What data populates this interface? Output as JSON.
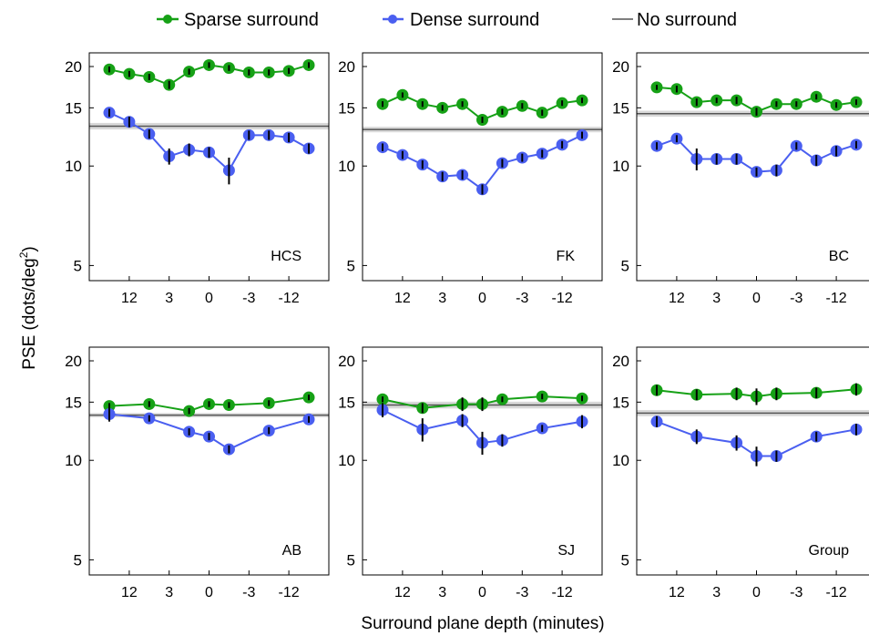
{
  "chart_data": {
    "type": "line",
    "legend": {
      "placement": "top",
      "items": [
        {
          "label": "Sparse surround",
          "color": "#16a116",
          "marker": "circle"
        },
        {
          "label": "Dense surround",
          "color": "#4a5ff0",
          "marker": "circle"
        },
        {
          "label": "No surround",
          "color": "#555555",
          "marker": "line"
        }
      ]
    },
    "ylabel_main": "PSE (dots/deg",
    "ylabel_sup": "2",
    "ylabel_close": ")",
    "xlabel": "Surround plane depth (minutes)",
    "x_tick_labels": [
      "12",
      "3",
      "0",
      "-3",
      "-12"
    ],
    "y_ticks": [
      5,
      10,
      15,
      20
    ],
    "y_scale": "log",
    "ylim": [
      4.5,
      22
    ],
    "x_positions": [
      1,
      2,
      3,
      4,
      5,
      6,
      7,
      8,
      9,
      10,
      11
    ],
    "x_tick_positions": [
      2,
      4,
      6,
      8,
      10
    ],
    "colors": {
      "sparse": "#16a116",
      "dense": "#4a5ff0",
      "baseline": "#555555",
      "band": "#d9d9d9"
    },
    "panels": [
      {
        "label": "HCS",
        "baseline": 13.2,
        "band": [
          12.9,
          13.5
        ],
        "sparse": [
          {
            "x": 1,
            "y": 19.6,
            "err": 0.4
          },
          {
            "x": 2,
            "y": 19.0,
            "err": 0.4
          },
          {
            "x": 3,
            "y": 18.6,
            "err": 0.4
          },
          {
            "x": 4,
            "y": 17.6,
            "err": 0.5
          },
          {
            "x": 5,
            "y": 19.3,
            "err": 0.4
          },
          {
            "x": 6,
            "y": 20.2,
            "err": 0.4
          },
          {
            "x": 7,
            "y": 19.8,
            "err": 0.4
          },
          {
            "x": 8,
            "y": 19.2,
            "err": 0.4
          },
          {
            "x": 9,
            "y": 19.2,
            "err": 0.4
          },
          {
            "x": 10,
            "y": 19.4,
            "err": 0.4
          },
          {
            "x": 11,
            "y": 20.2,
            "err": 0.4
          }
        ],
        "dense": [
          {
            "x": 1,
            "y": 14.5,
            "err": 0.4
          },
          {
            "x": 2,
            "y": 13.6,
            "err": 0.5
          },
          {
            "x": 3,
            "y": 12.5,
            "err": 0.4
          },
          {
            "x": 4,
            "y": 10.7,
            "err": 0.6
          },
          {
            "x": 5,
            "y": 11.2,
            "err": 0.5
          },
          {
            "x": 6,
            "y": 11.0,
            "err": 0.4
          },
          {
            "x": 7,
            "y": 9.7,
            "err": 0.9
          },
          {
            "x": 8,
            "y": 12.4,
            "err": 0.4
          },
          {
            "x": 9,
            "y": 12.4,
            "err": 0.4
          },
          {
            "x": 10,
            "y": 12.2,
            "err": 0.4
          },
          {
            "x": 11,
            "y": 11.3,
            "err": 0.4
          }
        ]
      },
      {
        "label": "FK",
        "baseline": 12.9,
        "band": [
          12.65,
          13.15
        ],
        "sparse": [
          {
            "x": 1,
            "y": 15.4,
            "err": 0.3
          },
          {
            "x": 2,
            "y": 16.4,
            "err": 0.3
          },
          {
            "x": 3,
            "y": 15.4,
            "err": 0.3
          },
          {
            "x": 4,
            "y": 15.0,
            "err": 0.3
          },
          {
            "x": 5,
            "y": 15.4,
            "err": 0.3
          },
          {
            "x": 6,
            "y": 13.8,
            "err": 0.3
          },
          {
            "x": 7,
            "y": 14.6,
            "err": 0.3
          },
          {
            "x": 8,
            "y": 15.2,
            "err": 0.3
          },
          {
            "x": 9,
            "y": 14.5,
            "err": 0.3
          },
          {
            "x": 10,
            "y": 15.5,
            "err": 0.3
          },
          {
            "x": 11,
            "y": 15.8,
            "err": 0.3
          }
        ],
        "dense": [
          {
            "x": 1,
            "y": 11.4,
            "err": 0.3
          },
          {
            "x": 2,
            "y": 10.8,
            "err": 0.3
          },
          {
            "x": 3,
            "y": 10.1,
            "err": 0.3
          },
          {
            "x": 4,
            "y": 9.3,
            "err": 0.3
          },
          {
            "x": 5,
            "y": 9.4,
            "err": 0.3
          },
          {
            "x": 6,
            "y": 8.5,
            "err": 0.3
          },
          {
            "x": 7,
            "y": 10.2,
            "err": 0.3
          },
          {
            "x": 8,
            "y": 10.6,
            "err": 0.3
          },
          {
            "x": 9,
            "y": 10.9,
            "err": 0.3
          },
          {
            "x": 10,
            "y": 11.6,
            "err": 0.3
          },
          {
            "x": 11,
            "y": 12.4,
            "err": 0.3
          }
        ]
      },
      {
        "label": "BC",
        "baseline": 14.4,
        "band": [
          14.1,
          14.7
        ],
        "sparse": [
          {
            "x": 1,
            "y": 17.3,
            "err": 0.3
          },
          {
            "x": 2,
            "y": 17.1,
            "err": 0.4
          },
          {
            "x": 3,
            "y": 15.6,
            "err": 0.4
          },
          {
            "x": 4,
            "y": 15.8,
            "err": 0.3
          },
          {
            "x": 5,
            "y": 15.8,
            "err": 0.4
          },
          {
            "x": 6,
            "y": 14.6,
            "err": 0.4
          },
          {
            "x": 7,
            "y": 15.4,
            "err": 0.3
          },
          {
            "x": 8,
            "y": 15.4,
            "err": 0.3
          },
          {
            "x": 9,
            "y": 16.2,
            "err": 0.3
          },
          {
            "x": 10,
            "y": 15.3,
            "err": 0.3
          },
          {
            "x": 11,
            "y": 15.6,
            "err": 0.3
          }
        ],
        "dense": [
          {
            "x": 1,
            "y": 11.5,
            "err": 0.3
          },
          {
            "x": 2,
            "y": 12.1,
            "err": 0.3
          },
          {
            "x": 3,
            "y": 10.5,
            "err": 0.8
          },
          {
            "x": 4,
            "y": 10.5,
            "err": 0.4
          },
          {
            "x": 5,
            "y": 10.5,
            "err": 0.4
          },
          {
            "x": 6,
            "y": 9.6,
            "err": 0.3
          },
          {
            "x": 7,
            "y": 9.7,
            "err": 0.4
          },
          {
            "x": 8,
            "y": 11.5,
            "err": 0.3
          },
          {
            "x": 9,
            "y": 10.4,
            "err": 0.4
          },
          {
            "x": 10,
            "y": 11.1,
            "err": 0.4
          },
          {
            "x": 11,
            "y": 11.6,
            "err": 0.3
          }
        ]
      },
      {
        "label": "AB",
        "baseline": 13.7,
        "band": [
          13.5,
          13.9
        ],
        "sparse": [
          {
            "x": 1,
            "y": 14.6,
            "err": 0.3
          },
          {
            "x": 3,
            "y": 14.8,
            "err": 0.3
          },
          {
            "x": 5,
            "y": 14.1,
            "err": 0.3
          },
          {
            "x": 6,
            "y": 14.8,
            "err": 0.3
          },
          {
            "x": 7,
            "y": 14.7,
            "err": 0.3
          },
          {
            "x": 9,
            "y": 14.9,
            "err": 0.3
          },
          {
            "x": 11,
            "y": 15.5,
            "err": 0.3
          }
        ],
        "dense": [
          {
            "x": 1,
            "y": 13.8,
            "err": 0.7
          },
          {
            "x": 3,
            "y": 13.4,
            "err": 0.3
          },
          {
            "x": 5,
            "y": 12.2,
            "err": 0.3
          },
          {
            "x": 6,
            "y": 11.8,
            "err": 0.3
          },
          {
            "x": 7,
            "y": 10.8,
            "err": 0.3
          },
          {
            "x": 9,
            "y": 12.3,
            "err": 0.3
          },
          {
            "x": 11,
            "y": 13.3,
            "err": 0.3
          }
        ]
      },
      {
        "label": "SJ",
        "baseline": 14.7,
        "band": [
          14.35,
          15.05
        ],
        "sparse": [
          {
            "x": 1,
            "y": 15.3,
            "err": 0.3
          },
          {
            "x": 3,
            "y": 14.4,
            "err": 0.5
          },
          {
            "x": 5,
            "y": 14.8,
            "err": 0.7
          },
          {
            "x": 6,
            "y": 14.8,
            "err": 0.7
          },
          {
            "x": 7,
            "y": 15.3,
            "err": 0.3
          },
          {
            "x": 9,
            "y": 15.6,
            "err": 0.3
          },
          {
            "x": 11,
            "y": 15.4,
            "err": 0.3
          }
        ],
        "dense": [
          {
            "x": 1,
            "y": 14.2,
            "err": 0.7
          },
          {
            "x": 3,
            "y": 12.4,
            "err": 1.0
          },
          {
            "x": 5,
            "y": 13.2,
            "err": 0.6
          },
          {
            "x": 6,
            "y": 11.3,
            "err": 0.9
          },
          {
            "x": 7,
            "y": 11.5,
            "err": 0.5
          },
          {
            "x": 9,
            "y": 12.5,
            "err": 0.3
          },
          {
            "x": 11,
            "y": 13.1,
            "err": 0.6
          }
        ]
      },
      {
        "label": "Group",
        "baseline": 13.9,
        "band": [
          13.6,
          14.2
        ],
        "sparse": [
          {
            "x": 1,
            "y": 16.3,
            "err": 0.6
          },
          {
            "x": 3,
            "y": 15.8,
            "err": 0.6
          },
          {
            "x": 5,
            "y": 15.9,
            "err": 0.7
          },
          {
            "x": 6,
            "y": 15.6,
            "err": 0.9
          },
          {
            "x": 7,
            "y": 15.9,
            "err": 0.7
          },
          {
            "x": 9,
            "y": 16.0,
            "err": 0.6
          },
          {
            "x": 11,
            "y": 16.4,
            "err": 0.7
          }
        ],
        "dense": [
          {
            "x": 1,
            "y": 13.1,
            "err": 0.5
          },
          {
            "x": 3,
            "y": 11.8,
            "err": 0.6
          },
          {
            "x": 5,
            "y": 11.3,
            "err": 0.6
          },
          {
            "x": 6,
            "y": 10.3,
            "err": 0.7
          },
          {
            "x": 7,
            "y": 10.3,
            "err": 0.4
          },
          {
            "x": 9,
            "y": 11.8,
            "err": 0.4
          },
          {
            "x": 11,
            "y": 12.4,
            "err": 0.5
          }
        ]
      }
    ]
  }
}
